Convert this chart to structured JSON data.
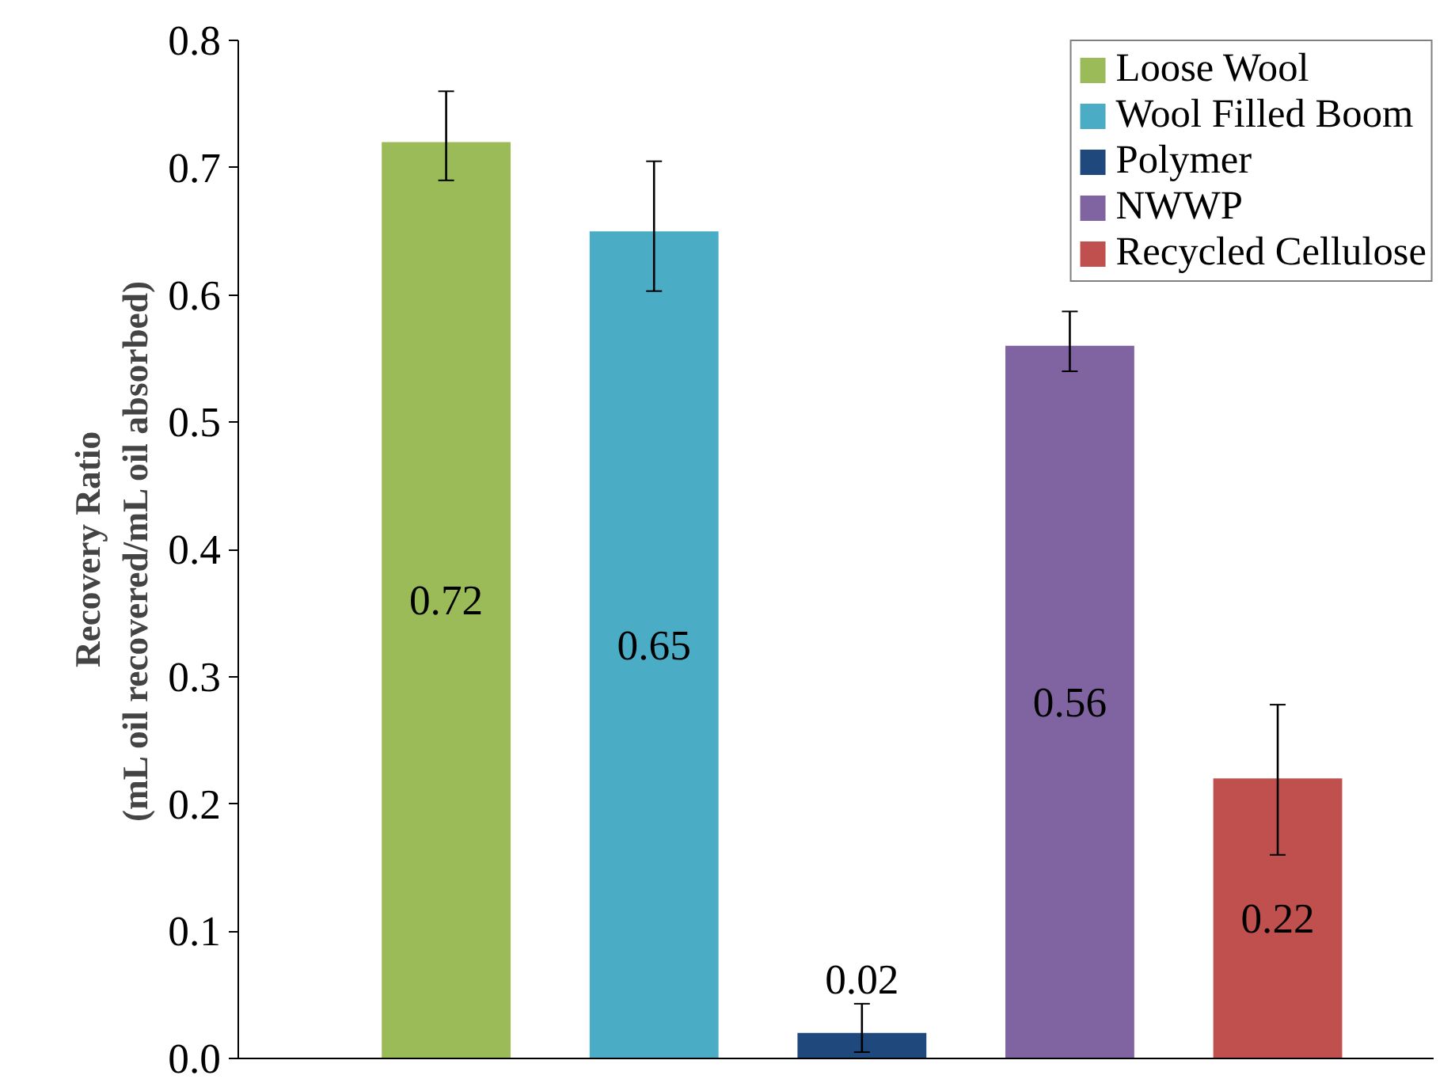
{
  "chart_data": {
    "type": "bar",
    "ylabel": "Recovery Ratio\n(mL oil recovered/mL oil absorbed)",
    "categories": [
      null,
      null,
      null,
      null,
      null
    ],
    "series": [
      {
        "name": "Loose Wool",
        "color": "#9bbb59",
        "values": [
          0.72,
          null,
          null,
          null,
          null
        ],
        "errors": [
          [
            0.69,
            0.76
          ],
          null,
          null,
          null,
          null
        ]
      },
      {
        "name": "Wool Filled Boom",
        "color": "#4bacc6",
        "values": [
          null,
          0.65,
          null,
          null,
          null
        ],
        "errors": [
          null,
          [
            0.603,
            0.705
          ],
          null,
          null,
          null
        ]
      },
      {
        "name": "Polymer",
        "color": "#1f497d",
        "values": [
          null,
          null,
          0.02,
          null,
          null
        ],
        "errors": [
          null,
          null,
          [
            0.005,
            0.043
          ],
          null,
          null
        ]
      },
      {
        "name": "NWWP",
        "color": "#8064a2",
        "values": [
          null,
          null,
          null,
          0.56,
          null
        ],
        "errors": [
          null,
          null,
          null,
          [
            0.54,
            0.587
          ],
          null
        ]
      },
      {
        "name": "Recycled Cellulose",
        "color": "#c0504d",
        "values": [
          null,
          null,
          null,
          null,
          0.22
        ],
        "errors": [
          null,
          null,
          null,
          null,
          [
            0.16,
            0.278
          ]
        ]
      }
    ],
    "ylim": [
      0,
      0.8
    ],
    "yticks": [
      {
        "value": 0,
        "label": "0.0"
      },
      0.1,
      0.2,
      0.3,
      0.4,
      0.5,
      0.6,
      0.7,
      0.8
    ],
    "data_labels": true,
    "grid": false,
    "legend": "top right"
  }
}
